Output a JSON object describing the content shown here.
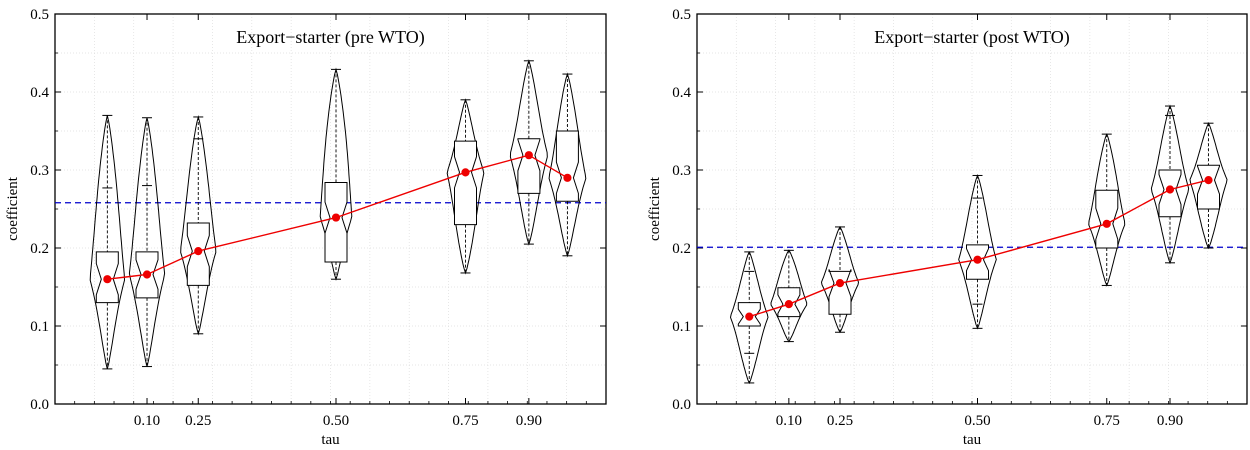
{
  "chart_data": [
    {
      "type": "violin",
      "title": "Export−starter (pre WTO)",
      "xlabel": "tau",
      "ylabel": "coefficient",
      "ylim": [
        0.0,
        0.5
      ],
      "yticks": [
        "0.0",
        "0.1",
        "0.2",
        "0.3",
        "0.4",
        "0.5"
      ],
      "xticks": [
        "0.10",
        "0.25",
        "0.50",
        "0.75",
        "0.90"
      ],
      "reference_line": {
        "value": 0.258,
        "color": "#0000cc",
        "style": "dashed"
      },
      "median_line_color": "#ee0000",
      "violins": [
        {
          "x": 0.05,
          "min": 0.045,
          "q1": 0.13,
          "median": 0.16,
          "q3": 0.195,
          "max": 0.37,
          "upper_tick": 0.277
        },
        {
          "x": 0.1,
          "min": 0.048,
          "q1": 0.136,
          "median": 0.166,
          "q3": 0.195,
          "max": 0.367,
          "upper_tick": 0.28
        },
        {
          "x": 0.25,
          "min": 0.09,
          "q1": 0.152,
          "median": 0.196,
          "q3": 0.232,
          "max": 0.368,
          "upper_tick": 0.34
        },
        {
          "x": 0.5,
          "min": 0.16,
          "q1": 0.182,
          "median": 0.239,
          "q3": 0.284,
          "max": 0.429
        },
        {
          "x": 0.75,
          "min": 0.168,
          "q1": 0.23,
          "median": 0.297,
          "q3": 0.337,
          "max": 0.39
        },
        {
          "x": 0.9,
          "min": 0.205,
          "q1": 0.27,
          "median": 0.319,
          "q3": 0.34,
          "max": 0.44
        },
        {
          "x": 0.95,
          "min": 0.19,
          "q1": 0.26,
          "median": 0.29,
          "q3": 0.35,
          "max": 0.423
        }
      ]
    },
    {
      "type": "violin",
      "title": "Export−starter (post WTO)",
      "xlabel": "tau",
      "ylabel": "coefficient",
      "ylim": [
        0.0,
        0.5
      ],
      "yticks": [
        "0.0",
        "0.1",
        "0.2",
        "0.3",
        "0.4",
        "0.5"
      ],
      "xticks": [
        "0.10",
        "0.25",
        "0.50",
        "0.75",
        "0.90"
      ],
      "reference_line": {
        "value": 0.201,
        "color": "#0000cc",
        "style": "dashed"
      },
      "median_line_color": "#ee0000",
      "violins": [
        {
          "x": 0.05,
          "min": 0.027,
          "q1": 0.1,
          "median": 0.112,
          "q3": 0.13,
          "max": 0.195,
          "lower_tick": 0.065,
          "upper_tick": 0.17
        },
        {
          "x": 0.1,
          "min": 0.08,
          "q1": 0.112,
          "median": 0.128,
          "q3": 0.149,
          "max": 0.197
        },
        {
          "x": 0.25,
          "min": 0.092,
          "q1": 0.115,
          "median": 0.155,
          "q3": 0.17,
          "max": 0.227
        },
        {
          "x": 0.5,
          "min": 0.097,
          "q1": 0.16,
          "median": 0.185,
          "q3": 0.204,
          "max": 0.293,
          "lower_tick": 0.128,
          "upper_tick": 0.264
        },
        {
          "x": 0.75,
          "min": 0.152,
          "q1": 0.2,
          "median": 0.231,
          "q3": 0.274,
          "max": 0.346
        },
        {
          "x": 0.9,
          "min": 0.181,
          "q1": 0.24,
          "median": 0.275,
          "q3": 0.3,
          "max": 0.382,
          "upper_tick": 0.37
        },
        {
          "x": 0.95,
          "min": 0.2,
          "q1": 0.25,
          "median": 0.287,
          "q3": 0.306,
          "max": 0.36
        }
      ]
    }
  ]
}
